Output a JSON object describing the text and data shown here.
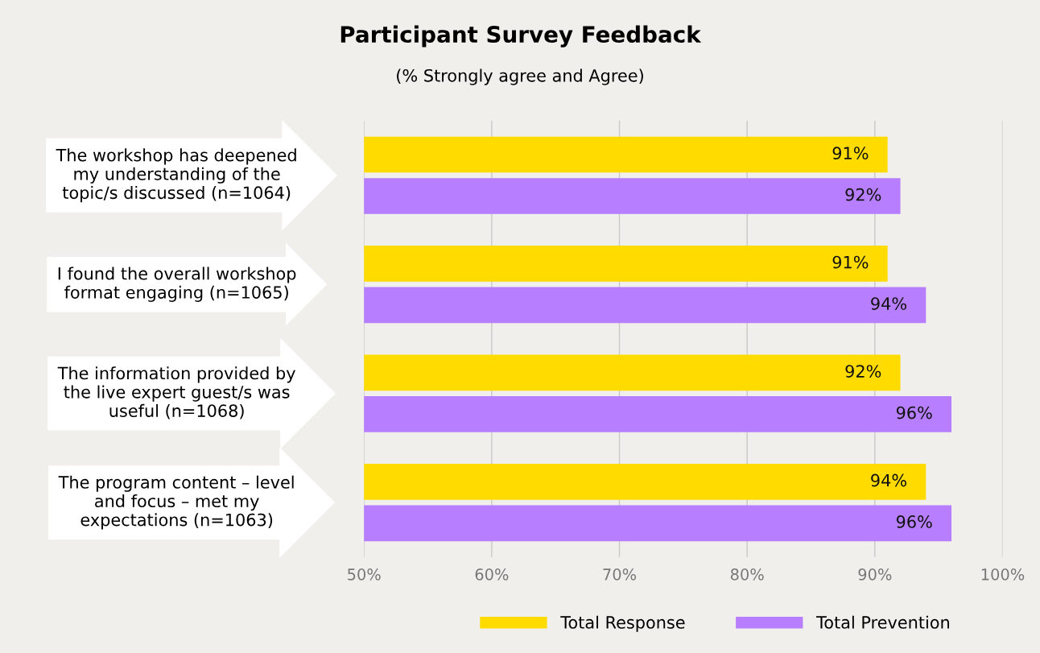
{
  "chart_data": {
    "type": "bar",
    "orientation": "horizontal",
    "title": "Participant Survey Feedback",
    "subtitle": "(% Strongly agree and Agree)",
    "categories": [
      "The workshop has deepened\nmy understanding of the\ntopic/s discussed (n=1064)",
      "I found the overall workshop\nformat engaging (n=1065)",
      "The information provided by\nthe live expert guest/s was\nuseful (n=1068)",
      "The program content – level\nand focus – met my\nexpectations (n=1063)"
    ],
    "series": [
      {
        "name": "Total Response",
        "color": "#ffdb00",
        "values": [
          91,
          91,
          92,
          94
        ],
        "value_labels": [
          "91%",
          "91%",
          "92%",
          "94%"
        ]
      },
      {
        "name": "Total Prevention",
        "color": "#b77fff",
        "values": [
          92,
          94,
          96,
          96
        ],
        "value_labels": [
          "92%",
          "94%",
          "96%",
          "96%"
        ]
      }
    ],
    "xlim": [
      50,
      100
    ],
    "xticks": [
      {
        "value": 50,
        "label": "50%"
      },
      {
        "value": 60,
        "label": "60%"
      },
      {
        "value": 70,
        "label": "70%"
      },
      {
        "value": 80,
        "label": "80%"
      },
      {
        "value": 90,
        "label": "90%"
      },
      {
        "value": 100,
        "label": "100%"
      }
    ],
    "grid": "x",
    "legend": "bottom"
  }
}
